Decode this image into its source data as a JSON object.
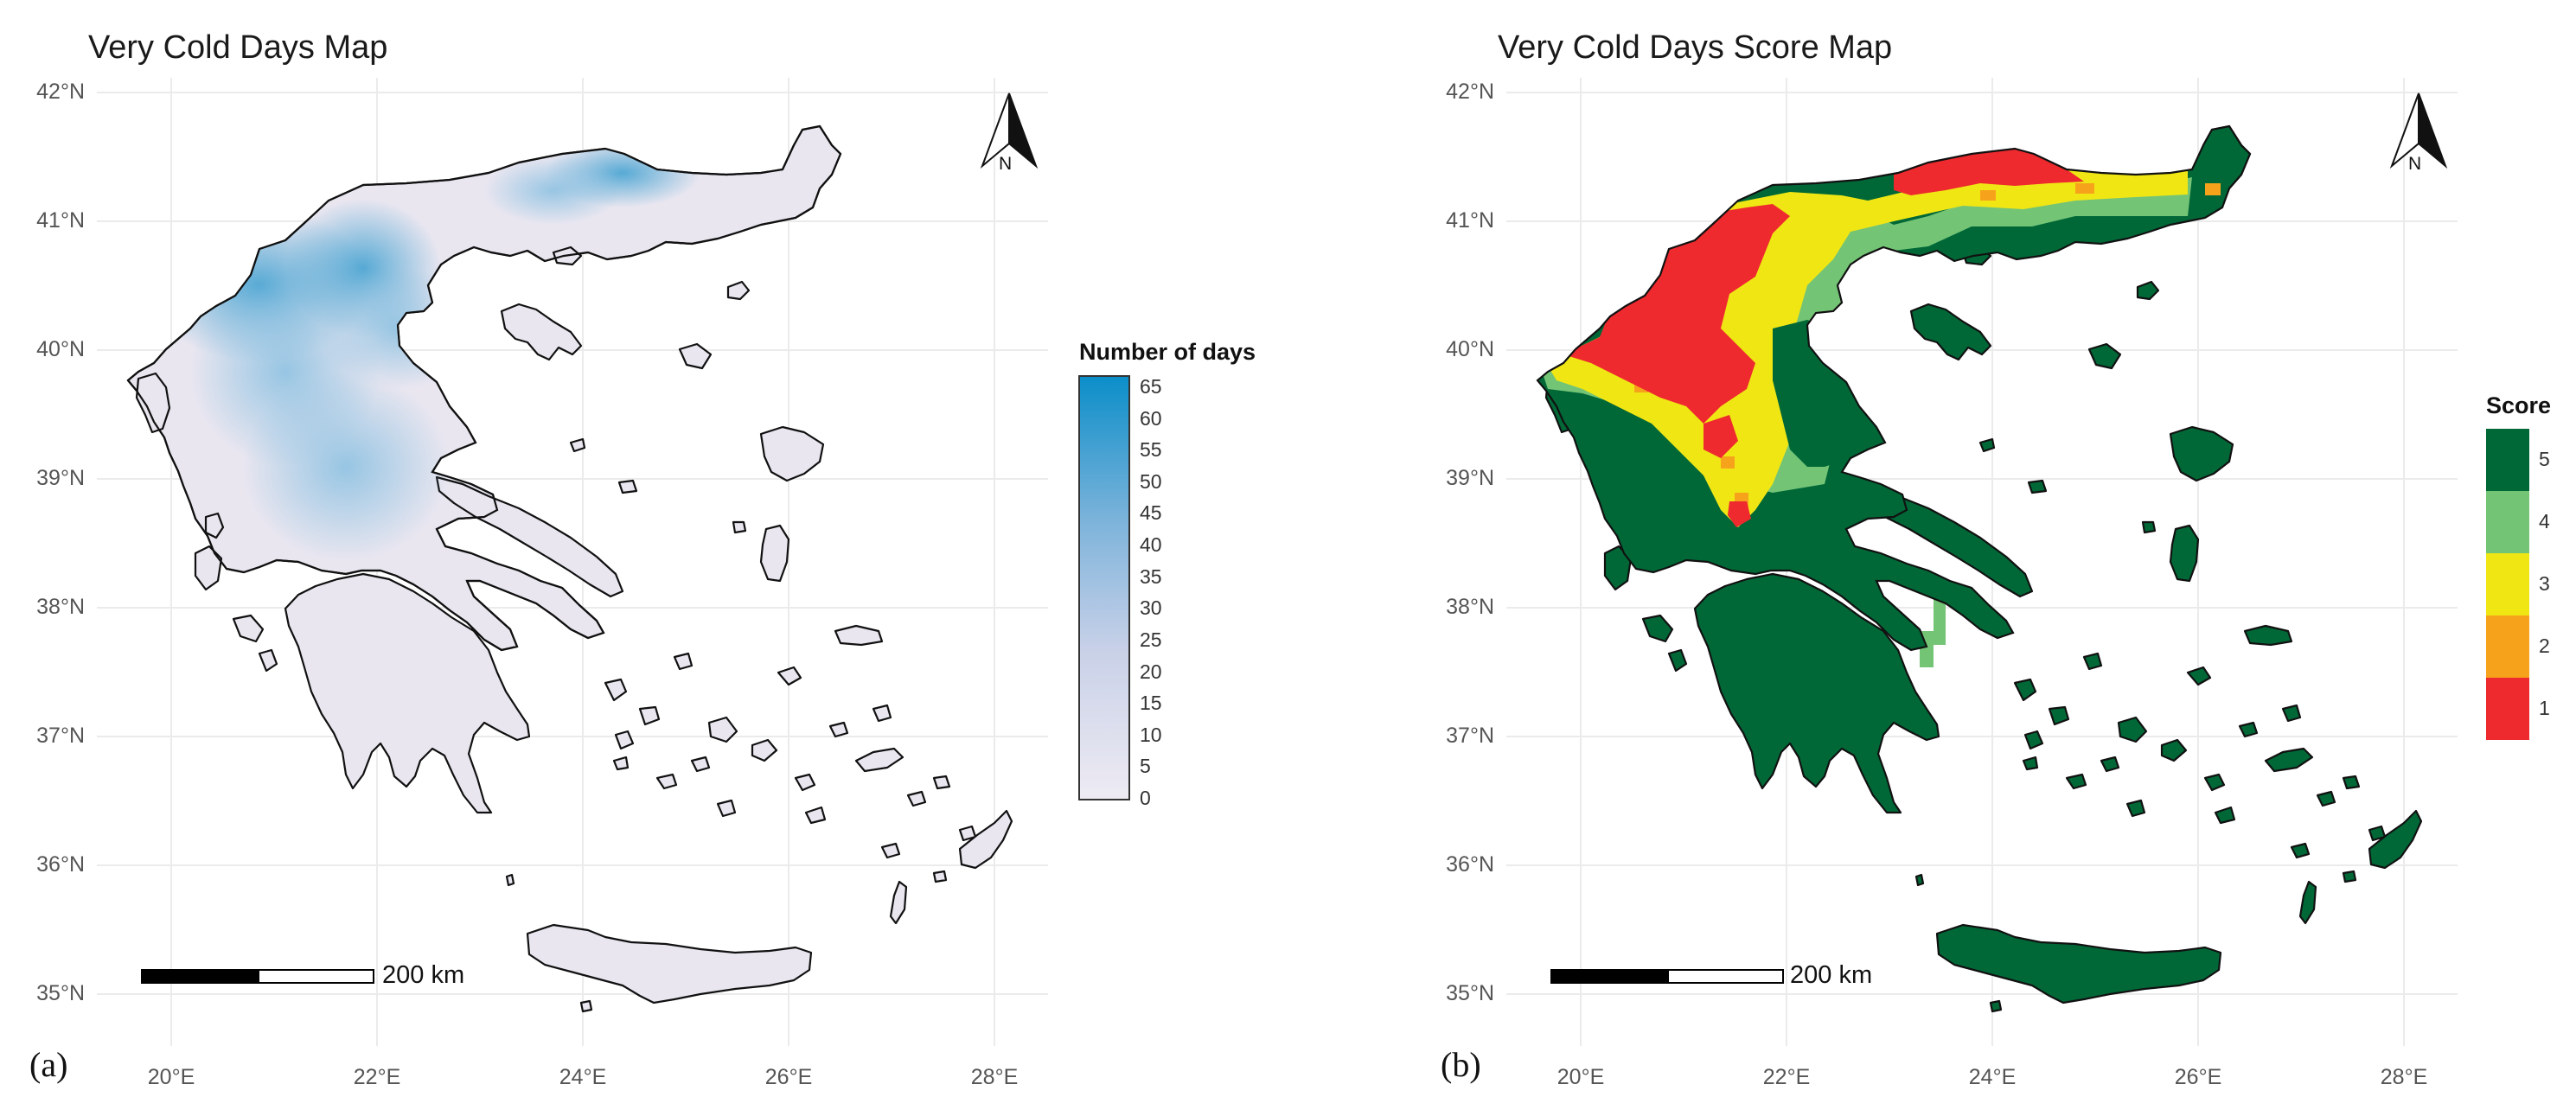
{
  "panels": [
    {
      "letter": "(a)",
      "title": "Very Cold Days Map",
      "legend_title": "Number of days",
      "legend_ticks": [
        "65",
        "60",
        "55",
        "50",
        "45",
        "40",
        "35",
        "30",
        "25",
        "20",
        "15",
        "10",
        "5",
        "0"
      ],
      "legend_type": "continuous",
      "colors": {
        "low": "#ece7f2",
        "high": "#0b8ec9",
        "land_base": "#e9e6f0"
      }
    },
    {
      "letter": "(b)",
      "title": "Very Cold Days Score Map",
      "legend_title": "Score",
      "legend_ticks": [
        "5",
        "4",
        "3",
        "2",
        "1"
      ],
      "legend_type": "discrete",
      "colors": {
        "5": "#006837",
        "4": "#74c476",
        "3": "#f0e614",
        "2": "#f7a21b",
        "1": "#ee2a2e"
      }
    }
  ],
  "axes": {
    "lat_labels": [
      "42°N",
      "41°N",
      "40°N",
      "39°N",
      "38°N",
      "37°N",
      "36°N",
      "35°N"
    ],
    "lon_labels": [
      "20°E",
      "22°E",
      "24°E",
      "26°E",
      "28°E"
    ]
  },
  "scale_bar": {
    "label": "200 km"
  },
  "north_arrow": {
    "label": "N"
  }
}
